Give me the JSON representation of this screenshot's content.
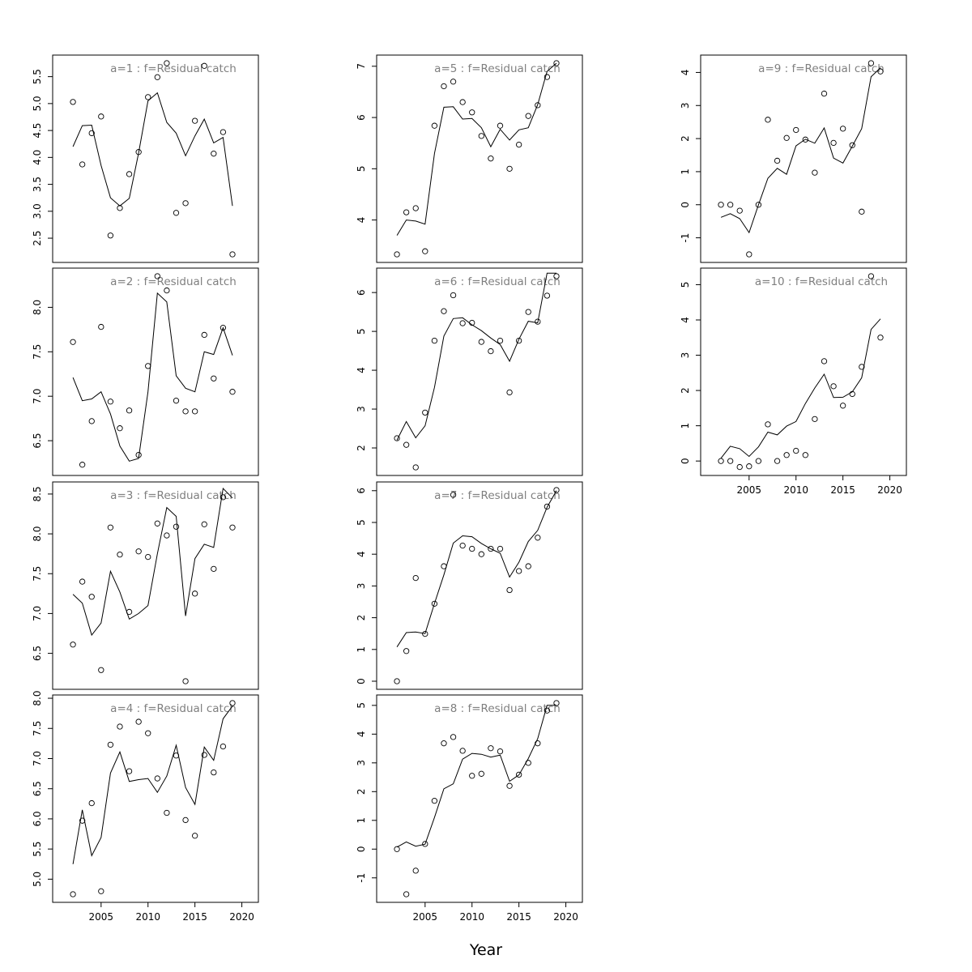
{
  "chart_data": {
    "type": "scatter",
    "xlabel": "Year",
    "title_template": "a={a}  :  f=Residual catch",
    "x": [
      2002,
      2003,
      2004,
      2005,
      2006,
      2007,
      2008,
      2009,
      2010,
      2011,
      2012,
      2013,
      2014,
      2015,
      2016,
      2017,
      2018,
      2019
    ],
    "xlim": [
      2000.7,
      2020.9
    ],
    "xticks": [
      2005,
      2010,
      2015,
      2020
    ],
    "panels": [
      {
        "title": "a=1  :  f=Residual catch",
        "ylim": [
          2.2,
          5.75
        ],
        "yticks": [
          2.5,
          3.0,
          3.5,
          4.0,
          4.5,
          5.0,
          5.5
        ],
        "yticklabels": [
          "2.5",
          "3.0",
          "3.5",
          "4.0",
          "4.5",
          "5.0",
          "5.5"
        ],
        "observed": [
          5.03,
          3.87,
          4.45,
          4.76,
          2.55,
          3.06,
          3.69,
          4.1,
          5.12,
          5.49,
          5.75,
          2.97,
          3.15,
          4.68,
          5.7,
          4.07,
          4.47,
          2.2
        ],
        "fitted": [
          4.2,
          4.59,
          4.6,
          3.85,
          3.25,
          3.1,
          3.24,
          4.08,
          5.05,
          5.2,
          4.65,
          4.45,
          4.03,
          4.4,
          4.71,
          4.27,
          4.37,
          3.1
        ]
      },
      {
        "title": "a=2  :  f=Residual catch",
        "ylim": [
          6.2,
          8.35
        ],
        "yticks": [
          6.5,
          7.0,
          7.5,
          8.0
        ],
        "yticklabels": [
          "6.5",
          "7.0",
          "7.5",
          "8.0"
        ],
        "observed": [
          7.61,
          6.23,
          6.72,
          7.78,
          6.94,
          6.64,
          6.84,
          6.34,
          7.34,
          8.35,
          8.19,
          6.95,
          6.83,
          6.83,
          7.69,
          7.2,
          7.77,
          7.05
        ],
        "fitted": [
          7.21,
          6.95,
          6.97,
          7.05,
          6.8,
          6.44,
          6.27,
          6.3,
          7.05,
          8.16,
          8.06,
          7.23,
          7.09,
          7.05,
          7.5,
          7.47,
          7.77,
          7.46
        ]
      },
      {
        "title": "a=3  :  f=Residual catch",
        "ylim": [
          6.15,
          8.55
        ],
        "yticks": [
          6.5,
          7.0,
          7.5,
          8.0,
          8.5
        ],
        "yticklabels": [
          "6.5",
          "7.0",
          "7.5",
          "8.0",
          "8.5"
        ],
        "observed": [
          6.61,
          7.4,
          7.21,
          6.29,
          8.08,
          7.74,
          7.02,
          7.78,
          7.71,
          8.13,
          7.98,
          8.09,
          6.15,
          7.25,
          8.12,
          7.56,
          8.46,
          8.08
        ],
        "fitted": [
          7.24,
          7.13,
          6.73,
          6.88,
          7.53,
          7.27,
          6.93,
          7.0,
          7.1,
          7.75,
          8.33,
          8.22,
          6.97,
          7.69,
          7.87,
          7.83,
          8.57,
          8.45
        ]
      },
      {
        "title": "a=4  :  f=Residual catch",
        "ylim": [
          4.75,
          7.92
        ],
        "yticks": [
          5.0,
          5.5,
          6.0,
          6.5,
          7.0,
          7.5,
          8.0
        ],
        "yticklabels": [
          "5.0",
          "5.5",
          "6.0",
          "6.5",
          "7.0",
          "7.5",
          "8.0"
        ],
        "observed": [
          4.75,
          5.97,
          6.26,
          4.8,
          7.23,
          7.53,
          6.79,
          7.61,
          7.42,
          6.67,
          6.1,
          7.05,
          5.98,
          5.72,
          7.06,
          6.77,
          7.2,
          7.92
        ],
        "fitted": [
          5.25,
          6.15,
          5.39,
          5.69,
          6.76,
          7.11,
          6.62,
          6.65,
          6.67,
          6.44,
          6.71,
          7.22,
          6.52,
          6.24,
          7.19,
          6.97,
          7.66,
          7.87
        ]
      },
      {
        "title": "a=5  :  f=Residual catch",
        "ylim": [
          3.33,
          7.06
        ],
        "yticks": [
          4,
          5,
          6,
          7
        ],
        "yticklabels": [
          "4",
          "5",
          "6",
          "7"
        ],
        "observed": [
          3.33,
          4.15,
          4.23,
          3.39,
          5.84,
          6.61,
          6.7,
          6.3,
          6.1,
          5.64,
          5.2,
          5.84,
          5.0,
          5.47,
          6.03,
          6.24,
          6.79,
          7.06
        ],
        "fitted": [
          3.7,
          4.0,
          3.98,
          3.92,
          5.3,
          6.2,
          6.21,
          5.97,
          5.98,
          5.8,
          5.43,
          5.77,
          5.56,
          5.76,
          5.8,
          6.25,
          6.9,
          7.06
        ]
      },
      {
        "title": "a=6  :  f=Residual catch",
        "ylim": [
          1.5,
          6.42
        ],
        "yticks": [
          2,
          3,
          4,
          5,
          6
        ],
        "yticklabels": [
          "2",
          "3",
          "4",
          "5",
          "6"
        ],
        "observed": [
          2.25,
          2.08,
          1.5,
          2.91,
          4.76,
          5.52,
          5.93,
          5.21,
          5.22,
          4.73,
          4.49,
          4.76,
          3.43,
          4.76,
          5.5,
          5.25,
          5.92,
          6.42
        ],
        "fitted": [
          2.2,
          2.68,
          2.26,
          2.57,
          3.56,
          4.88,
          5.33,
          5.35,
          5.17,
          5.02,
          4.83,
          4.66,
          4.23,
          4.8,
          5.26,
          5.22,
          6.5,
          6.5
        ]
      },
      {
        "title": "a=7  :  f=Residual catch",
        "ylim": [
          0,
          6.02
        ],
        "yticks": [
          0,
          1,
          2,
          3,
          4,
          5,
          6
        ],
        "yticklabels": [
          "0",
          "1",
          "2",
          "3",
          "4",
          "5",
          "6"
        ],
        "observed": [
          0.0,
          0.95,
          3.25,
          1.49,
          2.44,
          3.62,
          5.87,
          4.27,
          4.17,
          4.0,
          4.17,
          4.17,
          2.87,
          3.47,
          3.62,
          4.52,
          5.5,
          6.02
        ],
        "fitted": [
          1.08,
          1.53,
          1.55,
          1.5,
          2.45,
          3.35,
          4.35,
          4.58,
          4.55,
          4.34,
          4.17,
          4.03,
          3.28,
          3.75,
          4.4,
          4.75,
          5.48,
          6.0
        ]
      },
      {
        "title": "a=8  :  f=Residual catch",
        "ylim": [
          -1.57,
          5.08
        ],
        "yticks": [
          -1,
          0,
          1,
          2,
          3,
          4,
          5
        ],
        "yticklabels": [
          "-1",
          "0",
          "1",
          "2",
          "3",
          "4",
          "5"
        ],
        "observed": [
          0.0,
          -1.57,
          -0.75,
          0.18,
          1.68,
          3.68,
          3.9,
          3.42,
          2.55,
          2.62,
          3.51,
          3.4,
          2.2,
          2.59,
          3.0,
          3.68,
          4.82,
          5.08
        ],
        "fitted": [
          0.07,
          0.25,
          0.1,
          0.17,
          1.1,
          2.1,
          2.27,
          3.13,
          3.33,
          3.3,
          3.2,
          3.27,
          2.36,
          2.58,
          3.15,
          3.84,
          5.0,
          5.0
        ]
      },
      {
        "title": "a=9  :  f=Residual catch",
        "ylim": [
          -1.5,
          4.28
        ],
        "yticks": [
          -1,
          0,
          1,
          2,
          3,
          4
        ],
        "yticklabels": [
          "-1",
          "0",
          "1",
          "2",
          "3",
          "4"
        ],
        "observed": [
          0.0,
          0.0,
          -0.18,
          -1.5,
          0.0,
          2.57,
          1.33,
          2.02,
          2.26,
          1.97,
          0.97,
          3.36,
          1.87,
          2.3,
          1.8,
          -0.21,
          4.28,
          4.03
        ],
        "fitted": [
          -0.38,
          -0.27,
          -0.42,
          -0.84,
          0.0,
          0.8,
          1.1,
          0.92,
          1.78,
          1.98,
          1.86,
          2.32,
          1.41,
          1.26,
          1.77,
          2.3,
          3.87,
          4.14
        ]
      },
      {
        "title": "a=10  :  f=Residual catch",
        "ylim": [
          -0.18,
          5.24
        ],
        "yticks": [
          0,
          1,
          2,
          3,
          4,
          5
        ],
        "yticklabels": [
          "0",
          "1",
          "2",
          "3",
          "4",
          "5"
        ],
        "observed": [
          0.0,
          0.0,
          -0.17,
          -0.15,
          0.0,
          1.04,
          0.0,
          0.17,
          0.29,
          0.17,
          1.19,
          2.83,
          2.12,
          1.57,
          1.9,
          2.67,
          5.24,
          3.5
        ],
        "fitted": [
          0.08,
          0.42,
          0.35,
          0.13,
          0.4,
          0.82,
          0.74,
          0.99,
          1.12,
          1.63,
          2.07,
          2.46,
          1.8,
          1.81,
          1.96,
          2.36,
          3.73,
          4.03
        ]
      }
    ]
  }
}
